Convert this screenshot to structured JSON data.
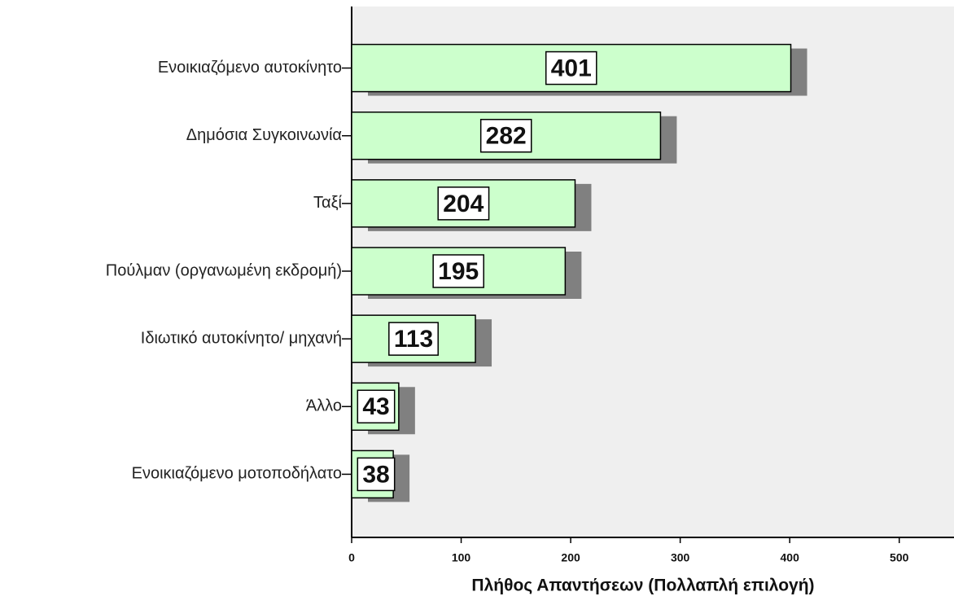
{
  "chart_data": {
    "type": "bar",
    "orientation": "horizontal",
    "x_label": "Πλήθος Απαντήσεων (Πολλαπλή επιλογή)",
    "categories": [
      "Ενοικιαζόμενο αυτοκίνητο",
      "Δημόσια Συγκοινωνία",
      "Ταξί",
      "Πούλμαν (οργανωμένη εκδρομή)",
      "Ιδιωτικό αυτοκίνητο/ μηχανή",
      "Άλλο",
      "Ενοικιαζόμενο μοτοποδήλατο"
    ],
    "values": [
      401,
      282,
      204,
      195,
      113,
      43,
      38
    ],
    "color": "#ccffcc",
    "xlim": [
      0,
      550
    ],
    "xticks": [
      0,
      100,
      200,
      300,
      400,
      500
    ]
  }
}
